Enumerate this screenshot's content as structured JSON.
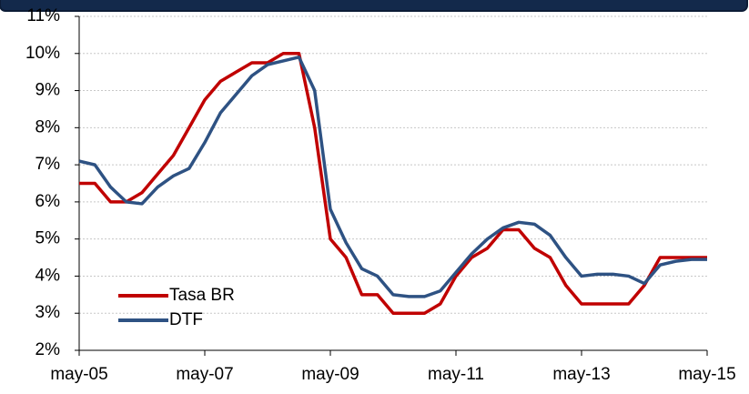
{
  "chart_data": {
    "type": "line",
    "categories": [
      "may-05",
      null,
      null,
      null,
      null,
      null,
      null,
      null,
      "may-07",
      null,
      null,
      null,
      null,
      null,
      null,
      null,
      "may-09",
      null,
      null,
      null,
      null,
      null,
      null,
      null,
      "may-11",
      null,
      null,
      null,
      null,
      null,
      null,
      null,
      "may-13",
      null,
      null,
      null,
      null,
      null,
      null,
      null,
      "may-15"
    ],
    "series": [
      {
        "name": "Tasa BR",
        "color": "#c00000",
        "values": [
          6.5,
          6.5,
          6.0,
          6.0,
          6.25,
          6.75,
          7.25,
          8.0,
          8.75,
          9.25,
          9.5,
          9.75,
          9.75,
          10.0,
          10.0,
          8.0,
          5.0,
          4.5,
          3.5,
          3.5,
          3.0,
          3.0,
          3.0,
          3.25,
          4.0,
          4.5,
          4.75,
          5.25,
          5.25,
          4.75,
          4.5,
          3.75,
          3.25,
          3.25,
          3.25,
          3.25,
          3.75,
          4.5,
          4.5,
          4.5,
          4.5
        ]
      },
      {
        "name": "DTF",
        "color": "#2e5283",
        "values": [
          7.1,
          7.0,
          6.4,
          6.0,
          5.95,
          6.4,
          6.7,
          6.9,
          7.6,
          8.4,
          8.9,
          9.4,
          9.7,
          9.8,
          9.9,
          9.0,
          5.8,
          4.9,
          4.2,
          4.0,
          3.5,
          3.45,
          3.45,
          3.6,
          4.1,
          4.6,
          5.0,
          5.3,
          5.45,
          5.4,
          5.1,
          4.5,
          4.0,
          4.05,
          4.05,
          4.0,
          3.8,
          4.3,
          4.4,
          4.45,
          4.45
        ]
      }
    ],
    "ylim": [
      2,
      11
    ],
    "yticks": [
      {
        "value": 2,
        "label": "2%"
      },
      {
        "value": 3,
        "label": "3%"
      },
      {
        "value": 4,
        "label": "4%"
      },
      {
        "value": 5,
        "label": "5%"
      },
      {
        "value": 6,
        "label": "6%"
      },
      {
        "value": 7,
        "label": "7%"
      },
      {
        "value": 8,
        "label": "8%"
      },
      {
        "value": 9,
        "label": "9%"
      },
      {
        "value": 10,
        "label": "10%"
      },
      {
        "value": 11,
        "label": "11%"
      }
    ],
    "grid": true,
    "legend": "lower left"
  }
}
